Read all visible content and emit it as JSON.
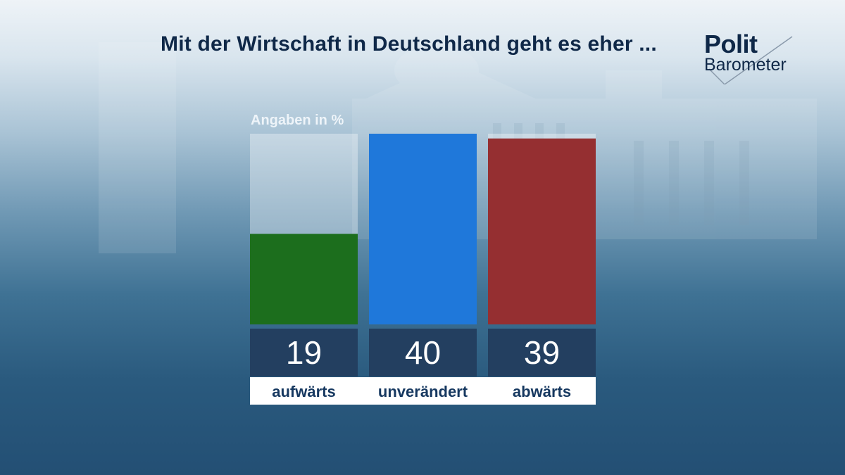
{
  "header": {
    "title": "Mit der Wirtschaft in Deutschland geht es eher ...",
    "logo_line1": "Polit",
    "logo_line2": "Barometer"
  },
  "chart_data": {
    "type": "bar",
    "title": "Mit der Wirtschaft in Deutschland geht es eher ...",
    "unit_label": "Angaben in %",
    "categories": [
      "aufwärts",
      "unverändert",
      "abwärts"
    ],
    "values": [
      19,
      40,
      39
    ],
    "value_labels": [
      "19",
      "40",
      "39"
    ],
    "colors": [
      "#1c6e1d",
      "#1f78da",
      "#952f31"
    ],
    "ylim": [
      0,
      40
    ],
    "grid": false,
    "legend": "none"
  }
}
